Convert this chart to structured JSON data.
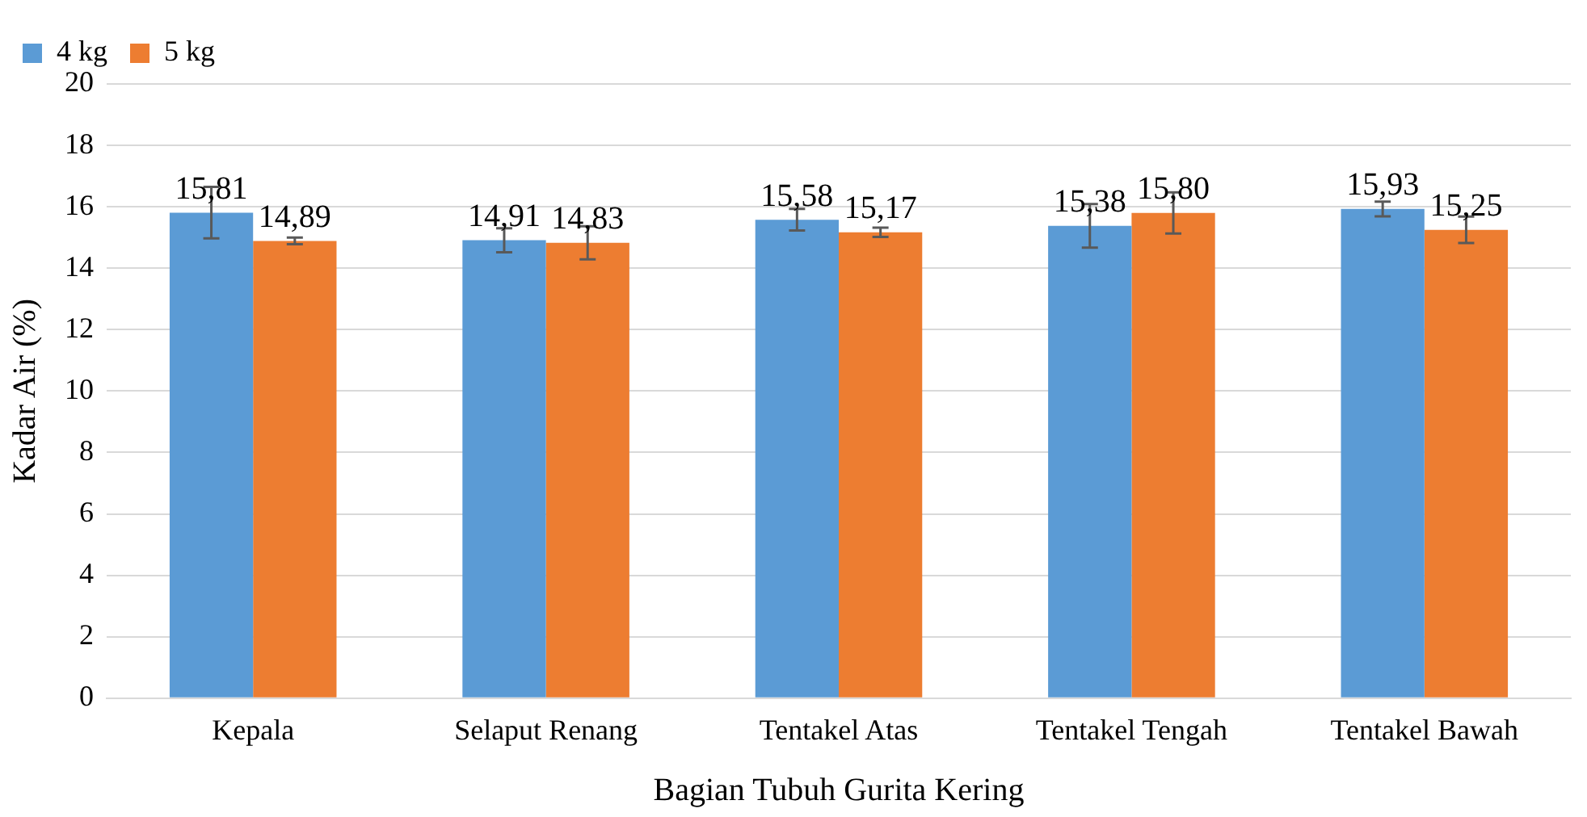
{
  "chart_data": {
    "type": "bar",
    "xlabel": "Bagian Tubuh Gurita Kering",
    "ylabel": "Kadar Air (%)",
    "categories": [
      "Kepala",
      "Selaput Renang",
      "Tentakel Atas",
      "Tentakel Tengah",
      "Tentakel Bawah"
    ],
    "series": [
      {
        "name": "4 kg",
        "color": "#5b9bd5",
        "values": [
          15.81,
          14.91,
          15.58,
          15.38,
          15.93
        ],
        "value_labels": [
          "15,81",
          "14,91",
          "15,58",
          "15,38",
          "15,93"
        ],
        "errors": [
          0.84,
          0.39,
          0.35,
          0.71,
          0.24
        ]
      },
      {
        "name": "5 kg",
        "color": "#ed7d31",
        "values": [
          14.89,
          14.83,
          15.17,
          15.8,
          15.25
        ],
        "value_labels": [
          "14,89",
          "14,83",
          "15,17",
          "15,80",
          "15,25"
        ],
        "errors": [
          0.11,
          0.54,
          0.15,
          0.67,
          0.43
        ]
      }
    ],
    "ylim": [
      0,
      20
    ],
    "yticks": [
      0,
      2,
      4,
      6,
      8,
      10,
      12,
      14,
      16,
      18,
      20
    ],
    "grid": "y",
    "legend": "top left"
  }
}
